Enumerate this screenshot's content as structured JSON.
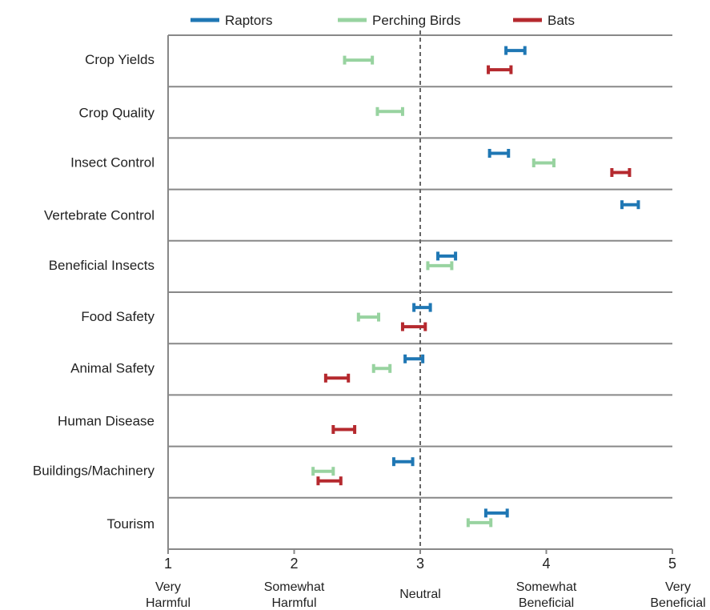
{
  "chart_data": {
    "type": "range",
    "xlim": [
      1,
      5
    ],
    "x_ticks": [
      1,
      2,
      3,
      4,
      5
    ],
    "x_tick_descriptions": [
      [
        "Very",
        "Harmful"
      ],
      [
        "Somewhat",
        "Harmful"
      ],
      [
        "Neutral"
      ],
      [
        "Somewhat",
        "Beneficial"
      ],
      [
        "Very",
        "Beneficial"
      ]
    ],
    "reference_line": 3,
    "legend_position": "top",
    "categories": [
      "Crop  Yields",
      "Crop  Quality",
      "Insect  Control",
      "Vertebrate  Control",
      "Beneficial  Insects",
      "Food  Safety",
      "Animal  Safety",
      "Human Disease",
      "Buildings/Machinery",
      "Tourism"
    ],
    "series": [
      {
        "name": "Raptors",
        "color": "#1f77b4",
        "ranges": [
          [
            3.68,
            3.83
          ],
          null,
          [
            3.55,
            3.7
          ],
          [
            4.6,
            4.73
          ],
          [
            3.14,
            3.28
          ],
          [
            2.95,
            3.08
          ],
          [
            2.88,
            3.02
          ],
          null,
          [
            2.79,
            2.94
          ],
          [
            3.52,
            3.69
          ]
        ]
      },
      {
        "name": "Perching Birds",
        "color": "#98d3a0",
        "ranges": [
          [
            2.4,
            2.62
          ],
          [
            2.66,
            2.86
          ],
          [
            3.9,
            4.06
          ],
          null,
          [
            3.06,
            3.25
          ],
          [
            2.51,
            2.67
          ],
          [
            2.63,
            2.76
          ],
          null,
          [
            2.15,
            2.31
          ],
          [
            3.38,
            3.56
          ]
        ]
      },
      {
        "name": "Bats",
        "color": "#b5292e",
        "ranges": [
          [
            3.54,
            3.72
          ],
          null,
          [
            4.52,
            4.66
          ],
          null,
          null,
          [
            2.86,
            3.04
          ],
          [
            2.25,
            2.43
          ],
          [
            2.31,
            2.48
          ],
          [
            2.19,
            2.37
          ],
          null
        ]
      }
    ]
  }
}
